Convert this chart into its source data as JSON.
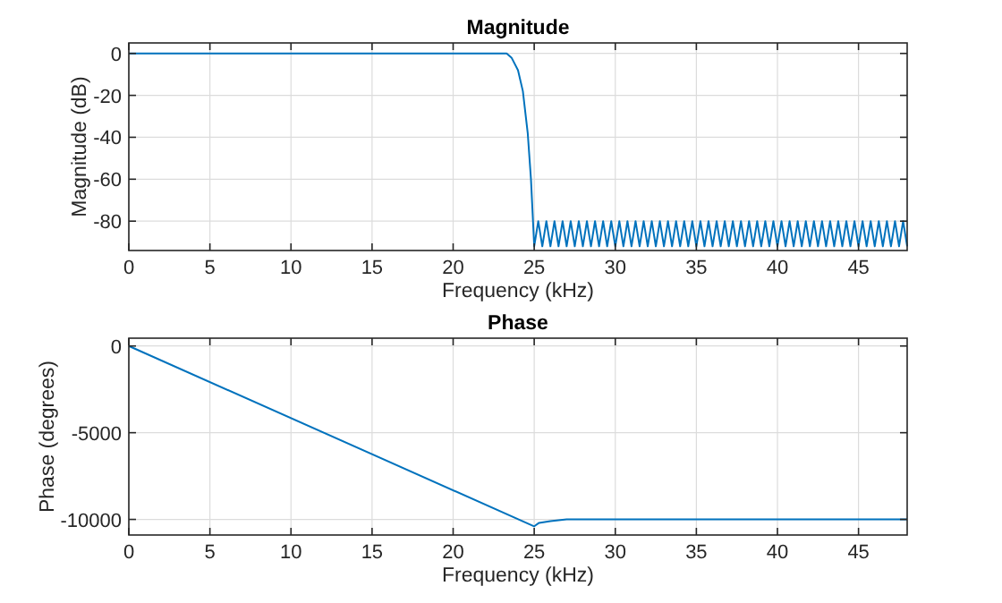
{
  "chart_data": [
    {
      "type": "line",
      "title": "Magnitude",
      "xlabel": "Frequency (kHz)",
      "ylabel": "Magnitude (dB)",
      "xlim": [
        0,
        48
      ],
      "xticks": [
        0,
        5,
        10,
        15,
        20,
        25,
        30,
        35,
        40,
        45
      ],
      "ylim": [
        -94,
        5
      ],
      "yticks": [
        -80,
        -60,
        -40,
        -20,
        0
      ],
      "grid": true,
      "series": [
        {
          "color": "#0072bd",
          "x": [
            0,
            5,
            10,
            15,
            20,
            23,
            23.3,
            23.6,
            24,
            24.3,
            24.6,
            24.8,
            25,
            25.25,
            25.5,
            25.75,
            26,
            26.25,
            26.5,
            26.75,
            27,
            27.25,
            27.5,
            27.75,
            28,
            28.25,
            28.5,
            28.75,
            29,
            29.25,
            29.5,
            29.75,
            30,
            30.25,
            30.5,
            30.75,
            31,
            31.25,
            31.5,
            31.75,
            32,
            32.25,
            32.5,
            32.75,
            33,
            33.25,
            33.5,
            33.75,
            34,
            34.25,
            34.5,
            34.75,
            35,
            35.25,
            35.5,
            35.75,
            36,
            36.25,
            36.5,
            36.75,
            37,
            37.25,
            37.5,
            37.75,
            38,
            38.25,
            38.5,
            38.75,
            39,
            39.25,
            39.5,
            39.75,
            40,
            40.25,
            40.5,
            40.75,
            41,
            41.25,
            41.5,
            41.75,
            42,
            42.25,
            42.5,
            42.75,
            43,
            43.25,
            43.5,
            43.75,
            44,
            44.25,
            44.5,
            44.75,
            45,
            45.25,
            45.5,
            45.75,
            46,
            46.25,
            46.5,
            46.75,
            47,
            47.25,
            47.5,
            47.75,
            48
          ],
          "values": [
            0,
            0,
            0,
            0,
            0,
            0,
            0,
            -2,
            -8,
            -18,
            -38,
            -60,
            -92,
            -80,
            -92,
            -80,
            -92,
            -80,
            -92,
            -80,
            -92,
            -80,
            -92,
            -80,
            -92,
            -80,
            -92,
            -80,
            -92,
            -80,
            -92,
            -80,
            -92,
            -80,
            -92,
            -80,
            -92,
            -80,
            -92,
            -80,
            -92,
            -80,
            -92,
            -80,
            -92,
            -80,
            -92,
            -80,
            -92,
            -80,
            -92,
            -80,
            -92,
            -80,
            -92,
            -80,
            -92,
            -80,
            -92,
            -80,
            -92,
            -80,
            -92,
            -80,
            -92,
            -80,
            -92,
            -80,
            -92,
            -80,
            -92,
            -80,
            -92,
            -80,
            -92,
            -80,
            -92,
            -80,
            -92,
            -80,
            -92,
            -80,
            -92,
            -80,
            -92,
            -80,
            -92,
            -80,
            -92,
            -80,
            -92,
            -80,
            -92,
            -80,
            -92,
            -80,
            -92,
            -80,
            -92,
            -80,
            -92,
            -80,
            -92,
            -80,
            -92
          ]
        }
      ]
    },
    {
      "type": "line",
      "title": "Phase",
      "xlabel": "Frequency (kHz)",
      "ylabel": "Phase (degrees)",
      "xlim": [
        0,
        48
      ],
      "xticks": [
        0,
        5,
        10,
        15,
        20,
        25,
        30,
        35,
        40,
        45
      ],
      "ylim": [
        -10900,
        450
      ],
      "yticks": [
        -10000,
        -5000,
        0
      ],
      "grid": true,
      "series": [
        {
          "color": "#0072bd",
          "x": [
            0,
            25,
            25.3,
            26,
            27,
            30,
            35,
            40,
            45,
            48
          ],
          "values": [
            0,
            -10400,
            -10200,
            -10100,
            -10000,
            -10000,
            -10000,
            -10000,
            -10000,
            -10000
          ]
        }
      ]
    }
  ]
}
